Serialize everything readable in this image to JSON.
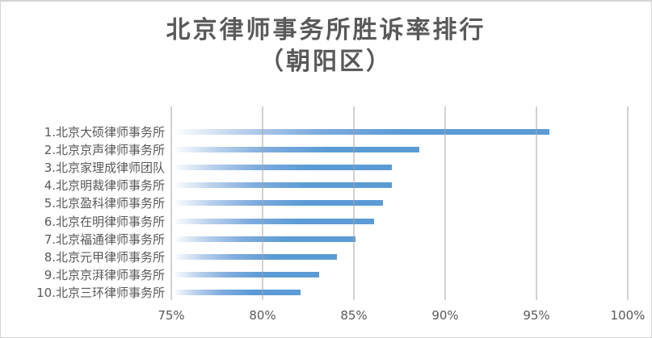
{
  "title": {
    "line1": "北京律师事务所胜诉率排行",
    "line2": "（朝阳区）"
  },
  "chart_data": {
    "type": "bar",
    "orientation": "horizontal",
    "title": "北京律师事务所胜诉率排行（朝阳区）",
    "categories": [
      "1.北京大硕律师事务所",
      "2.北京京声律师事务所",
      "3.北京家理成律师团队",
      "4.北京明裁律师事务所",
      "5.北京盈科律师事务所",
      "6.北京在明律师事务所",
      "7.北京福通律师事务所",
      "8.北京元甲律师事务所",
      "9.北京京湃律师事务所",
      "10.北京三环律师事务所"
    ],
    "values": [
      95.6,
      88.5,
      87,
      87,
      86.5,
      86,
      85,
      84,
      83,
      82
    ],
    "unit": "%",
    "xlabel": "",
    "ylabel": "",
    "xlim": [
      75,
      100
    ],
    "xticks": [
      75,
      80,
      85,
      90,
      95,
      100
    ],
    "xtick_labels": [
      "75%",
      "80%",
      "85%",
      "90%",
      "95%",
      "100%"
    ],
    "grid": true,
    "legend_position": "none",
    "colors": {
      "bar": "#5b9bd5",
      "bar_gradient_start": "#ffffff",
      "gridline": "#d0d0d0",
      "text": "#595959",
      "title": "#595959",
      "background": "#ffffff",
      "border": "#d4d4d4"
    }
  }
}
